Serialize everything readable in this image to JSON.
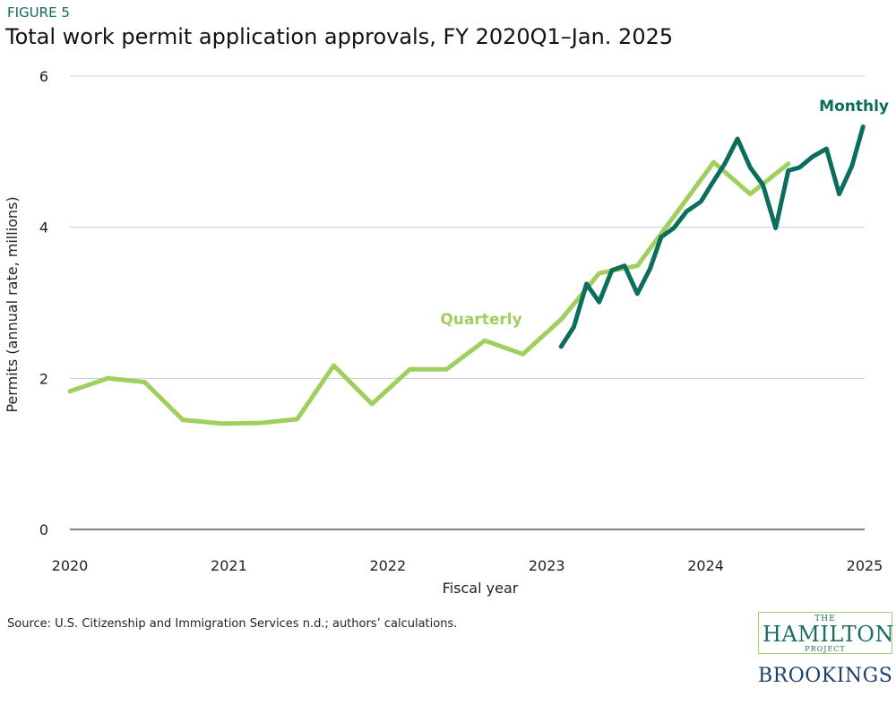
{
  "figure_label": "FIGURE 5",
  "source": "Source: U.S. Citizenship and Immigration Services n.d.; authors’ calculations.",
  "logo": {
    "the": "THE",
    "hamilton": "HAMILTON",
    "project": "PROJECT",
    "brookings": "BROOKINGS"
  },
  "chart_data": {
    "type": "line",
    "title": "Total work permit application approvals, FY 2020Q1–Jan. 2025",
    "xlabel": "Fiscal year",
    "ylabel": "Permits (annual rate, millions)",
    "xlim": [
      2020,
      2025
    ],
    "ylim": [
      0,
      6
    ],
    "xticks": [
      "2020",
      "2021",
      "2022",
      "2023",
      "2024",
      "2025"
    ],
    "yticks": [
      "0",
      "2",
      "4",
      "6"
    ],
    "grid": "horizontal",
    "series": [
      {
        "name": "Quarterly",
        "color": "#9fcf5f",
        "x": [
          2020.0,
          2020.24,
          2020.47,
          2020.71,
          2020.96,
          2021.2,
          2021.43,
          2021.66,
          2021.9,
          2022.14,
          2022.37,
          2022.61,
          2022.85,
          2023.09,
          2023.33,
          2023.57,
          2023.81,
          2024.05,
          2024.28,
          2024.52
        ],
        "y": [
          1.83,
          2.0,
          1.95,
          1.45,
          1.4,
          1.41,
          1.46,
          2.17,
          1.66,
          2.12,
          2.12,
          2.5,
          2.32,
          2.78,
          3.39,
          3.49,
          4.17,
          4.86,
          4.44,
          4.84
        ]
      },
      {
        "name": "Monthly",
        "color": "#0b6e5c",
        "x": [
          2023.09,
          2023.17,
          2023.25,
          2023.33,
          2023.41,
          2023.49,
          2023.57,
          2023.65,
          2023.72,
          2023.8,
          2023.88,
          2023.97,
          2024.04,
          2024.12,
          2024.2,
          2024.28,
          2024.36,
          2024.44,
          2024.52,
          2024.59,
          2024.67,
          2024.76,
          2024.84,
          2024.92,
          2024.99
        ],
        "y": [
          2.42,
          2.68,
          3.25,
          3.01,
          3.43,
          3.49,
          3.12,
          3.45,
          3.87,
          3.99,
          4.21,
          4.34,
          4.58,
          4.84,
          5.17,
          4.79,
          4.56,
          3.99,
          4.75,
          4.79,
          4.93,
          5.04,
          4.44,
          4.81,
          5.33
        ]
      }
    ]
  }
}
